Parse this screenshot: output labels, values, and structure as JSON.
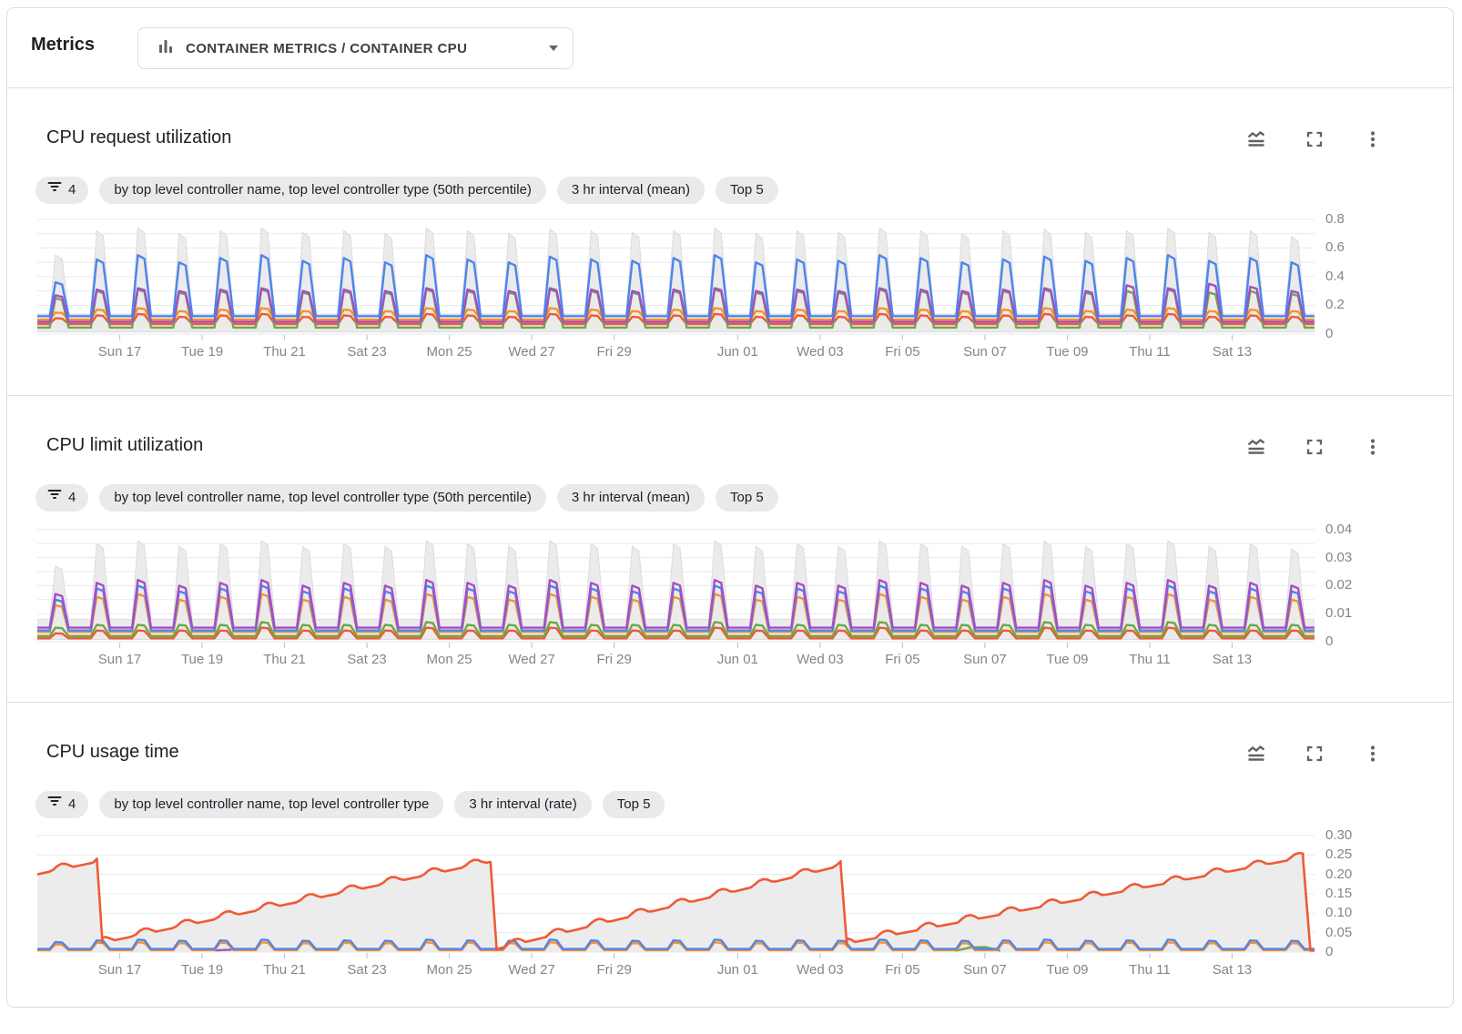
{
  "header": {
    "label": "Metrics",
    "selector": {
      "value": "CONTAINER METRICS / CONTAINER CPU",
      "icon": "bar-chart-icon",
      "caret_icon": "caret-down-icon"
    }
  },
  "colors": {
    "blue": "#4c85ec",
    "purple": "#a64dc8",
    "green": "#6ea846",
    "orange": "#fa9129",
    "red": "#ef5a35",
    "band_fill": "#e9e9e9",
    "band_edge": "#dcdcdc",
    "grid": "#e8eaed",
    "tick": "#c4c7cb",
    "axis_text": "#80868b",
    "icon": "#5f6368",
    "divider": "#e0e0e0"
  },
  "action_icons": [
    "multiline-chart-icon",
    "fullscreen-icon",
    "more-vert-icon"
  ],
  "x_ticks": [
    {
      "d": 2,
      "label": "Sun 17"
    },
    {
      "d": 4,
      "label": "Tue 19"
    },
    {
      "d": 6,
      "label": "Thu 21"
    },
    {
      "d": 8,
      "label": "Sat 23"
    },
    {
      "d": 10,
      "label": "Mon 25"
    },
    {
      "d": 12,
      "label": "Wed 27"
    },
    {
      "d": 14,
      "label": "Fri 29"
    },
    {
      "d": 17,
      "label": "Jun 01"
    },
    {
      "d": 19,
      "label": "Wed 03"
    },
    {
      "d": 21,
      "label": "Fri 05"
    },
    {
      "d": 23,
      "label": "Sun 07"
    },
    {
      "d": 25,
      "label": "Tue 09"
    },
    {
      "d": 27,
      "label": "Thu 11"
    },
    {
      "d": 29,
      "label": "Sat 13"
    }
  ],
  "charts": [
    {
      "title": "CPU request utilization",
      "chips": {
        "filter_count": "4",
        "filter_icon": "filter-list-icon",
        "group_by": "by top level controller name, top level controller type (50th percentile)",
        "interval": "3 hr interval (mean)",
        "top": "Top 5"
      },
      "chart_data": {
        "type": "line",
        "total_days": 31,
        "y_axis": {
          "max": 0.85,
          "grid_step": 0.1,
          "ticks": [
            {
              "v": 0.8,
              "label": "0.8"
            },
            {
              "v": 0.6,
              "label": "0.6"
            },
            {
              "v": 0.4,
              "label": "0.4"
            },
            {
              "v": 0.2,
              "label": "0.2"
            },
            {
              "v": 0,
              "label": "0"
            }
          ]
        },
        "series": [
          {
            "name": "minmax-band",
            "type": "band",
            "color_key": "band_fill",
            "low": 0.015,
            "base": 0.14,
            "peaks": [
              0.55,
              0.72,
              0.74,
              0.7,
              0.72,
              0.74,
              0.71,
              0.72,
              0.7,
              0.74,
              0.72,
              0.7,
              0.73,
              0.72,
              0.71,
              0.72,
              0.74,
              0.7,
              0.72,
              0.71,
              0.74,
              0.72,
              0.7,
              0.72,
              0.73,
              0.71,
              0.72,
              0.74,
              0.71,
              0.72,
              0.68
            ]
          },
          {
            "name": "red",
            "type": "periodic",
            "color_key": "red",
            "base": 0.07,
            "peaks": [
              0.11,
              0.13,
              0.14,
              0.12,
              0.13,
              0.14,
              0.12,
              0.13,
              0.12,
              0.14,
              0.13,
              0.12,
              0.14,
              0.13,
              0.12,
              0.13,
              0.14,
              0.12,
              0.13,
              0.12,
              0.14,
              0.13,
              0.12,
              0.13,
              0.14,
              0.12,
              0.13,
              0.14,
              0.12,
              0.13,
              0.12
            ]
          },
          {
            "name": "orange",
            "type": "periodic",
            "color_key": "orange",
            "base": 0.1,
            "peaks": [
              0.15,
              0.17,
              0.18,
              0.16,
              0.17,
              0.18,
              0.16,
              0.17,
              0.16,
              0.18,
              0.17,
              0.16,
              0.18,
              0.17,
              0.16,
              0.17,
              0.18,
              0.16,
              0.17,
              0.16,
              0.18,
              0.17,
              0.16,
              0.17,
              0.18,
              0.16,
              0.17,
              0.18,
              0.16,
              0.17,
              0.16
            ]
          },
          {
            "name": "green",
            "type": "periodic",
            "color_key": "green",
            "base": 0.045,
            "peaks": [
              0.25,
              0.3,
              0.31,
              0.29,
              0.3,
              0.31,
              0.29,
              0.3,
              0.29,
              0.31,
              0.3,
              0.29,
              0.31,
              0.3,
              0.29,
              0.3,
              0.31,
              0.29,
              0.3,
              0.29,
              0.31,
              0.3,
              0.29,
              0.3,
              0.31,
              0.29,
              0.3,
              0.31,
              0.29,
              0.3,
              0.28
            ]
          },
          {
            "name": "purple",
            "type": "periodic",
            "color_key": "purple",
            "base": 0.085,
            "peaks": [
              0.27,
              0.31,
              0.32,
              0.3,
              0.31,
              0.32,
              0.3,
              0.31,
              0.3,
              0.32,
              0.31,
              0.3,
              0.32,
              0.31,
              0.3,
              0.31,
              0.32,
              0.3,
              0.31,
              0.3,
              0.32,
              0.31,
              0.3,
              0.31,
              0.32,
              0.3,
              0.34,
              0.32,
              0.35,
              0.33,
              0.3
            ]
          },
          {
            "name": "blue",
            "type": "periodic",
            "color_key": "blue",
            "base": 0.125,
            "peaks": [
              0.36,
              0.52,
              0.55,
              0.5,
              0.53,
              0.55,
              0.51,
              0.53,
              0.5,
              0.55,
              0.52,
              0.5,
              0.54,
              0.52,
              0.51,
              0.53,
              0.55,
              0.5,
              0.52,
              0.51,
              0.55,
              0.53,
              0.5,
              0.52,
              0.54,
              0.51,
              0.53,
              0.55,
              0.51,
              0.53,
              0.5
            ]
          }
        ]
      }
    },
    {
      "title": "CPU limit utilization",
      "chips": {
        "filter_count": "4",
        "filter_icon": "filter-list-icon",
        "group_by": "by top level controller name, top level controller type (50th percentile)",
        "interval": "3 hr interval (mean)",
        "top": "Top 5"
      },
      "chart_data": {
        "type": "line",
        "total_days": 31,
        "y_axis": {
          "max": 0.0435,
          "grid_step": 0.005,
          "ticks": [
            {
              "v": 0.04,
              "label": "0.04"
            },
            {
              "v": 0.03,
              "label": "0.03"
            },
            {
              "v": 0.02,
              "label": "0.02"
            },
            {
              "v": 0.01,
              "label": "0.01"
            },
            {
              "v": 0,
              "label": "0"
            }
          ]
        },
        "series": [
          {
            "name": "minmax-band",
            "type": "band",
            "color_key": "band_fill",
            "low": 0.0008,
            "base": 0.008,
            "peaks": [
              0.027,
              0.035,
              0.036,
              0.034,
              0.035,
              0.036,
              0.034,
              0.035,
              0.034,
              0.036,
              0.035,
              0.034,
              0.036,
              0.035,
              0.034,
              0.035,
              0.036,
              0.034,
              0.035,
              0.034,
              0.036,
              0.035,
              0.034,
              0.035,
              0.036,
              0.034,
              0.035,
              0.036,
              0.034,
              0.035,
              0.033
            ]
          },
          {
            "name": "red",
            "type": "periodic",
            "color_key": "red",
            "base": 0.0012,
            "peaks": [
              0.003,
              0.004,
              0.004,
              0.004,
              0.004,
              0.005,
              0.004,
              0.004,
              0.004,
              0.005,
              0.004,
              0.004,
              0.005,
              0.004,
              0.004,
              0.004,
              0.005,
              0.004,
              0.004,
              0.004,
              0.005,
              0.004,
              0.004,
              0.004,
              0.005,
              0.004,
              0.004,
              0.005,
              0.004,
              0.004,
              0.004
            ]
          },
          {
            "name": "green",
            "type": "periodic",
            "color_key": "green",
            "base": 0.002,
            "peaks": [
              0.005,
              0.006,
              0.006,
              0.006,
              0.006,
              0.007,
              0.006,
              0.006,
              0.006,
              0.007,
              0.006,
              0.006,
              0.007,
              0.006,
              0.006,
              0.006,
              0.007,
              0.006,
              0.006,
              0.006,
              0.007,
              0.006,
              0.006,
              0.006,
              0.007,
              0.006,
              0.006,
              0.007,
              0.006,
              0.006,
              0.006
            ]
          },
          {
            "name": "orange",
            "type": "periodic",
            "color_key": "orange",
            "base": 0.0035,
            "peaks": [
              0.013,
              0.016,
              0.017,
              0.015,
              0.016,
              0.017,
              0.015,
              0.016,
              0.015,
              0.017,
              0.016,
              0.015,
              0.017,
              0.016,
              0.015,
              0.016,
              0.017,
              0.015,
              0.016,
              0.015,
              0.017,
              0.016,
              0.015,
              0.016,
              0.017,
              0.015,
              0.016,
              0.017,
              0.015,
              0.016,
              0.015
            ]
          },
          {
            "name": "blue",
            "type": "periodic",
            "color_key": "blue",
            "base": 0.004,
            "peaks": [
              0.015,
              0.019,
              0.02,
              0.018,
              0.019,
              0.02,
              0.018,
              0.019,
              0.018,
              0.02,
              0.019,
              0.018,
              0.02,
              0.019,
              0.018,
              0.019,
              0.02,
              0.018,
              0.019,
              0.018,
              0.02,
              0.019,
              0.018,
              0.019,
              0.02,
              0.018,
              0.019,
              0.02,
              0.018,
              0.019,
              0.018
            ]
          },
          {
            "name": "purple",
            "type": "periodic",
            "color_key": "purple",
            "base": 0.005,
            "peaks": [
              0.017,
              0.021,
              0.022,
              0.02,
              0.021,
              0.022,
              0.02,
              0.021,
              0.02,
              0.022,
              0.021,
              0.02,
              0.022,
              0.021,
              0.02,
              0.021,
              0.022,
              0.02,
              0.021,
              0.02,
              0.022,
              0.021,
              0.02,
              0.021,
              0.022,
              0.02,
              0.021,
              0.022,
              0.02,
              0.021,
              0.02
            ]
          }
        ]
      }
    },
    {
      "title": "CPU usage time",
      "chips": {
        "filter_count": "4",
        "filter_icon": "filter-list-icon",
        "group_by": "by top level controller name, top level controller type",
        "interval": "3 hr interval (rate)",
        "top": "Top 5"
      },
      "chart_data": {
        "type": "line",
        "total_days": 31,
        "y_axis": {
          "max": 0.323,
          "grid_step": 0.05,
          "ticks": [
            {
              "v": 0.3,
              "label": "0.30"
            },
            {
              "v": 0.25,
              "label": "0.25"
            },
            {
              "v": 0.2,
              "label": "0.20"
            },
            {
              "v": 0.15,
              "label": "0.15"
            },
            {
              "v": 0.1,
              "label": "0.10"
            },
            {
              "v": 0.05,
              "label": "0.05"
            },
            {
              "v": 0,
              "label": "0"
            }
          ]
        },
        "series": [
          {
            "name": "red-sawtooth",
            "type": "saw",
            "color_key": "red",
            "fill": true,
            "bump": 0.014,
            "segments": [
              [
                0,
                0.2,
                1.45,
                0.232
              ],
              [
                1.45,
                0.232,
                1.58,
                0.024
              ],
              [
                1.58,
                0.024,
                11.0,
                0.232
              ],
              [
                11.0,
                0.232,
                11.15,
                0.006
              ],
              [
                11.15,
                0.008,
                19.5,
                0.222
              ],
              [
                19.5,
                0.222,
                19.65,
                0.018
              ],
              [
                19.65,
                0.022,
                30.72,
                0.243
              ],
              [
                30.72,
                0.243,
                30.9,
                0.004
              ],
              [
                30.9,
                0.004,
                31,
                0.004
              ]
            ]
          },
          {
            "name": "purple-segment",
            "type": "segment",
            "color_key": "purple",
            "points": [
              [
                4.05,
                0.007
              ],
              [
                4.35,
                0.0045
              ],
              [
                4.7,
                0.006
              ]
            ]
          },
          {
            "name": "green-segment",
            "type": "segment",
            "color_key": "green",
            "points": [
              [
                22.3,
                0.004
              ],
              [
                22.65,
                0.012
              ],
              [
                23.0,
                0.013
              ],
              [
                23.35,
                0.004
              ]
            ]
          },
          {
            "name": "orange",
            "type": "periodic",
            "color_key": "orange",
            "base": 0.005,
            "peaks": [
              0.02,
              0.024,
              0.025,
              0.023,
              0.024,
              0.025,
              0.023,
              0.024,
              0.023,
              0.025,
              0.024,
              0.023,
              0.025,
              0.024,
              0.023,
              0.024,
              0.025,
              0.023,
              0.024,
              0.023,
              0.025,
              0.024,
              0.023,
              0.024,
              0.025,
              0.023,
              0.024,
              0.025,
              0.023,
              0.024,
              0.023
            ]
          },
          {
            "name": "blue",
            "type": "periodic",
            "color_key": "blue",
            "base": 0.008,
            "peaks": [
              0.026,
              0.03,
              0.032,
              0.029,
              0.03,
              0.032,
              0.029,
              0.03,
              0.029,
              0.032,
              0.03,
              0.029,
              0.032,
              0.03,
              0.029,
              0.03,
              0.032,
              0.029,
              0.03,
              0.029,
              0.032,
              0.03,
              0.029,
              0.03,
              0.032,
              0.029,
              0.03,
              0.032,
              0.029,
              0.03,
              0.029
            ]
          }
        ]
      }
    }
  ]
}
